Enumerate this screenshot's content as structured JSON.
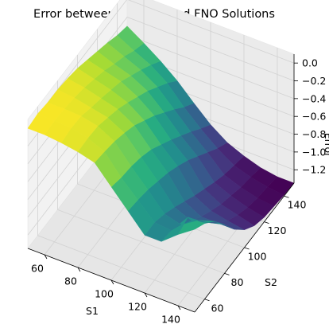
{
  "chart_data": {
    "type": "surface3d",
    "title": "Error between Analytic and FNO Solutions",
    "xlabel": "S1",
    "ylabel": "S2",
    "zlabel": "Error",
    "xlim": [
      50,
      150
    ],
    "ylim": [
      50,
      150
    ],
    "zlim": [
      -1.35,
      0.1
    ],
    "x_ticks": [
      60,
      80,
      100,
      120,
      140
    ],
    "y_ticks": [
      60,
      80,
      100,
      120,
      140
    ],
    "z_ticks": [
      0.0,
      -0.2,
      -0.4,
      -0.6,
      -0.8,
      -1.0,
      -1.2
    ],
    "z_tick_labels": [
      "0.0",
      "−0.2",
      "−0.4",
      "−0.6",
      "−0.8",
      "−1.0",
      "−1.2"
    ],
    "colormap": "viridis",
    "grid": true,
    "x": [
      50,
      60,
      70,
      80,
      90,
      100,
      110,
      120,
      130,
      140,
      150
    ],
    "y": [
      50,
      60,
      70,
      80,
      90,
      100,
      110,
      120,
      130,
      140,
      150
    ],
    "z": [
      [
        0.0,
        0.0,
        -0.02,
        -0.05,
        -0.1,
        -0.3,
        -0.5,
        -0.7,
        -0.7,
        -0.55,
        -0.42
      ],
      [
        0.02,
        0.01,
        0.0,
        -0.04,
        -0.12,
        -0.34,
        -0.52,
        -0.7,
        -0.72,
        -0.5,
        -0.5
      ],
      [
        0.0,
        0.0,
        -0.01,
        -0.05,
        -0.15,
        -0.36,
        -0.55,
        -0.75,
        -0.8,
        -0.68,
        -0.62
      ],
      [
        0.0,
        -0.02,
        -0.06,
        -0.1,
        -0.2,
        -0.4,
        -0.6,
        -0.82,
        -0.9,
        -0.85,
        -0.8
      ],
      [
        -0.02,
        -0.05,
        -0.1,
        -0.15,
        -0.26,
        -0.46,
        -0.65,
        -0.9,
        -1.0,
        -1.0,
        -1.0
      ],
      [
        -0.05,
        -0.1,
        -0.15,
        -0.22,
        -0.35,
        -0.55,
        -0.72,
        -0.98,
        -1.08,
        -1.12,
        -1.15
      ],
      [
        -0.1,
        -0.15,
        -0.2,
        -0.3,
        -0.44,
        -0.64,
        -0.8,
        -1.05,
        -1.15,
        -1.2,
        -1.25
      ],
      [
        -0.15,
        -0.22,
        -0.28,
        -0.38,
        -0.55,
        -0.74,
        -0.9,
        -1.12,
        -1.2,
        -1.26,
        -1.3
      ],
      [
        -0.2,
        -0.28,
        -0.36,
        -0.48,
        -0.66,
        -0.84,
        -1.0,
        -1.18,
        -1.25,
        -1.3,
        -1.32
      ],
      [
        -0.26,
        -0.36,
        -0.45,
        -0.58,
        -0.78,
        -0.95,
        -1.1,
        -1.22,
        -1.28,
        -1.32,
        -1.34
      ],
      [
        -0.3,
        -0.42,
        -0.55,
        -0.7,
        -0.88,
        -1.05,
        -1.18,
        -1.26,
        -1.32,
        -1.35,
        -1.35
      ]
    ]
  }
}
